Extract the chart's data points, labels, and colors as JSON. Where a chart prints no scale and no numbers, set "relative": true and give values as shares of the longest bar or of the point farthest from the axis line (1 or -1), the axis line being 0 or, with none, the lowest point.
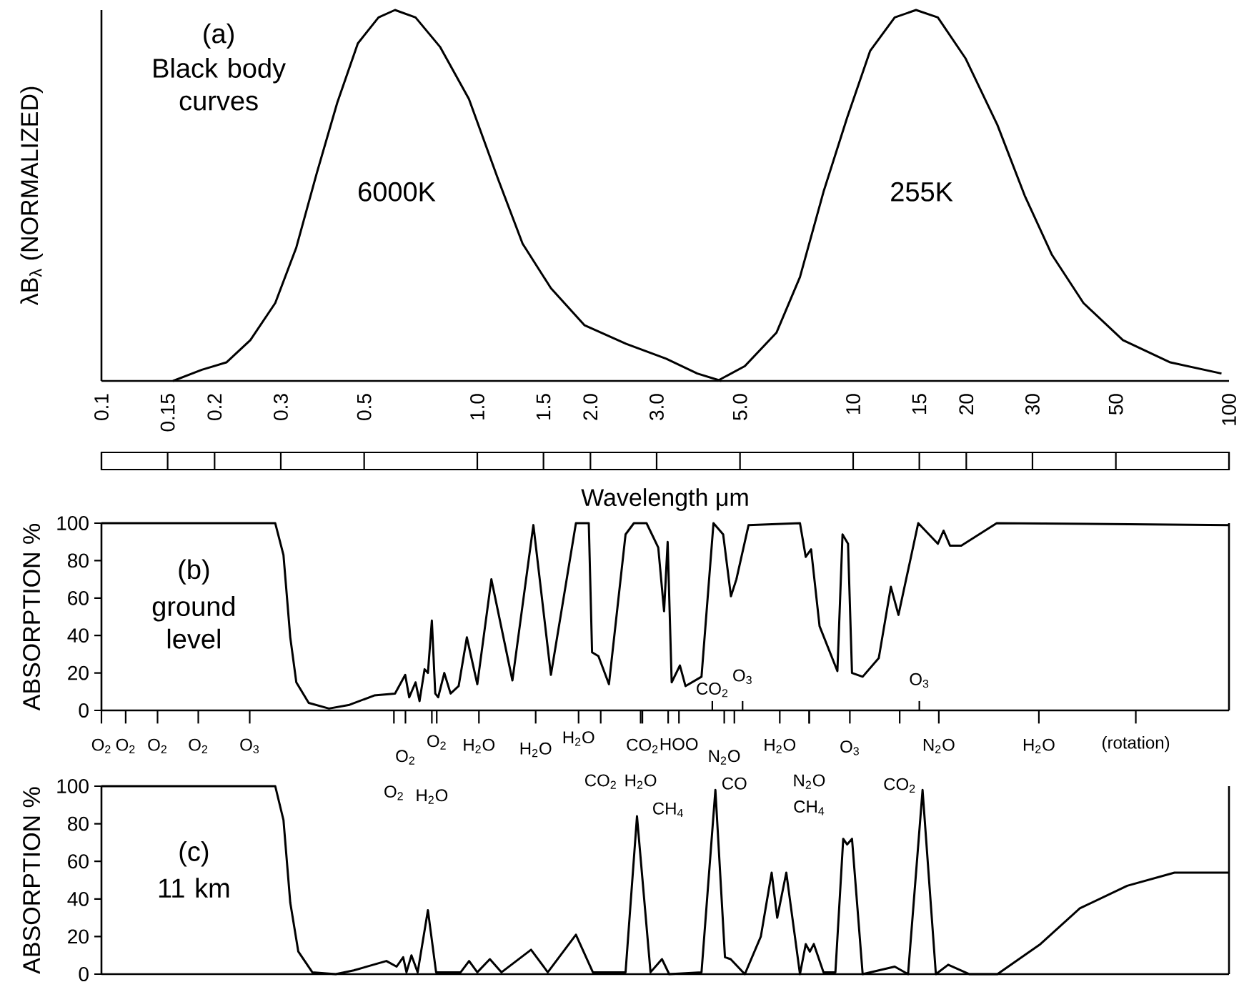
{
  "chart_data": [
    {
      "type": "line",
      "title": "(a)",
      "subtitle": "Black body curves",
      "ylabel": "λB$_{λ}$ (NORMALIZED)",
      "xlabel": "Wavelength μm",
      "relative": true,
      "log": "x",
      "xlim": [
        0.1,
        100
      ],
      "xticks": [
        0.1,
        0.15,
        0.2,
        0.3,
        0.5,
        {
          "value": 1,
          "label": "1.0"
        },
        1.5,
        {
          "value": 2,
          "label": "2.0"
        },
        {
          "value": 3,
          "label": "3.0"
        },
        {
          "value": 5,
          "label": "5.0"
        },
        10,
        15,
        20,
        30,
        50,
        100
      ],
      "tick_labels": "x",
      "series": [
        {
          "color": "#000000",
          "x": [
            0.155,
            0.185,
            0.215,
            0.249,
            0.29,
            0.33,
            0.374,
            0.424,
            0.481,
            0.546,
            0.604,
            0.685,
            0.797,
            0.95,
            1.13,
            1.32,
            1.57,
            1.93,
            2.49,
            3.18,
            3.85,
            4.46
          ],
          "values": [
            0,
            0.03,
            0.05,
            0.11,
            0.21,
            0.36,
            0.56,
            0.75,
            0.91,
            0.98,
            1,
            0.98,
            0.9,
            0.76,
            0.55,
            0.37,
            0.25,
            0.15,
            0.1,
            0.06,
            0.02,
            0
          ]
        },
        {
          "color": "#000000",
          "x": [
            4.35,
            5.15,
            6.25,
            7.22,
            8.34,
            9.64,
            11.1,
            12.9,
            14.7,
            16.8,
            19.9,
            24.2,
            28.6,
            33.8,
            41,
            52.2,
            69.8,
            95.5
          ],
          "values": [
            0,
            0.04,
            0.13,
            0.28,
            0.51,
            0.71,
            0.89,
            0.98,
            1,
            0.98,
            0.87,
            0.69,
            0.5,
            0.34,
            0.21,
            0.11,
            0.05,
            0.02
          ]
        }
      ],
      "annotations": [
        "6000K",
        "255K"
      ]
    },
    {
      "type": "line",
      "title": "(b)",
      "subtitle": "ground level",
      "ylabel": "ABSORPTION %",
      "log": "x",
      "xlim": [
        0.1,
        100
      ],
      "ylim": [
        0,
        100
      ],
      "yticks": [
        0,
        20,
        40,
        60,
        80,
        100
      ],
      "tick_labels": "y",
      "color": "#000000",
      "x": [
        0.1,
        0.29,
        0.305,
        0.318,
        0.33,
        0.356,
        0.403,
        0.457,
        0.532,
        0.604,
        0.643,
        0.659,
        0.685,
        0.702,
        0.724,
        0.739,
        0.757,
        0.773,
        0.787,
        0.817,
        0.849,
        0.892,
        0.938,
        1.0,
        1.09,
        1.24,
        1.41,
        1.57,
        1.83,
        1.98,
        2.02,
        2.1,
        2.24,
        2.48,
        2.61,
        2.82,
        3.03,
        3.14,
        3.21,
        3.29,
        3.46,
        3.58,
        3.95,
        4.25,
        4.51,
        4.73,
        4.89,
        5.27,
        7.22,
        7.48,
        7.73,
        8.14,
        9.08,
        9.37,
        9.69,
        9.93,
        10.6,
        11.7,
        12.6,
        13.2,
        14.9,
        16.8,
        17.4,
        18.1,
        19.4,
        24.1,
        100
      ],
      "values": [
        100,
        100,
        83,
        39,
        15,
        4,
        1,
        3,
        8,
        9,
        19,
        7,
        15,
        5,
        22,
        20,
        48,
        9,
        7,
        20,
        9,
        13,
        39,
        14,
        70,
        16,
        99,
        19,
        100,
        100,
        31,
        29,
        14,
        94,
        100,
        100,
        87,
        53,
        90,
        15,
        24,
        13,
        18,
        100,
        94,
        61,
        70,
        99,
        100,
        82,
        86,
        45,
        21,
        94,
        89,
        20,
        18,
        28,
        66,
        51,
        100,
        89,
        96,
        88,
        88,
        100,
        99
      ],
      "annotations": [
        "O$_{2}$",
        "O$_{2}$",
        "O$_{2}$",
        "O$_{2}$",
        "O$_{3}$",
        "O$_{2}$",
        "O$_{2}$",
        "O$_{2}$",
        "H$_{2}$O",
        "H$_{2}$O",
        "H$_{2}$O",
        "H$_{2}$O",
        "CO$_{2}$",
        "H$_{2}$O",
        "CO$_{2}$",
        "HOO",
        "CH$_{4}$",
        "CO$_{2}$",
        "O$_{3}$",
        "N$_{2}$O",
        "CO",
        "H$_{2}$O",
        "N$_{2}$O",
        "CH$_{4}$",
        "O$_{3}$",
        "CO$_{2}$",
        "O$_{3}$",
        "N$_{2}$O",
        "H$_{2}$O",
        "(rotation)"
      ]
    },
    {
      "type": "line",
      "title": "(c)",
      "subtitle": "11 km",
      "ylabel": "ABSORPTION %",
      "log": "x",
      "xlim": [
        0.1,
        100
      ],
      "ylim": [
        0,
        100
      ],
      "yticks": [
        0,
        20,
        40,
        60,
        80,
        100
      ],
      "tick_labels": "y",
      "color": "#000000",
      "x": [
        0.1,
        0.29,
        0.305,
        0.318,
        0.334,
        0.364,
        0.42,
        0.469,
        0.573,
        0.61,
        0.635,
        0.648,
        0.668,
        0.694,
        0.739,
        0.777,
        0.903,
        0.951,
        1.0,
        1.08,
        1.16,
        1.39,
        1.54,
        1.83,
        2.03,
        2.48,
        2.66,
        2.89,
        3.1,
        3.24,
        3.95,
        4.3,
        4.56,
        4.72,
        5.15,
        5.68,
        6.07,
        6.28,
        6.64,
        7.22,
        7.48,
        7.67,
        7.86,
        8.34,
        8.97,
        9.41,
        9.64,
        9.93,
        10.6,
        12.9,
        14.0,
        15.3,
        16.6,
        17.9,
        20.4,
        24.2,
        31.5,
        40.1,
        53.6,
        71.6,
        100
      ],
      "values": [
        100,
        100,
        82,
        38,
        12,
        1,
        0,
        2,
        7,
        4,
        9,
        1,
        10,
        1,
        34,
        1,
        1,
        7,
        1,
        8,
        1,
        13,
        1,
        21,
        1,
        1,
        84,
        1,
        8,
        0,
        1,
        98,
        9,
        8,
        0,
        20,
        54,
        30,
        54,
        0,
        16,
        12,
        16,
        1,
        1,
        72,
        69,
        72,
        0,
        4,
        0,
        98,
        0,
        5,
        0,
        0,
        16,
        35,
        47,
        54,
        54
      ]
    }
  ]
}
